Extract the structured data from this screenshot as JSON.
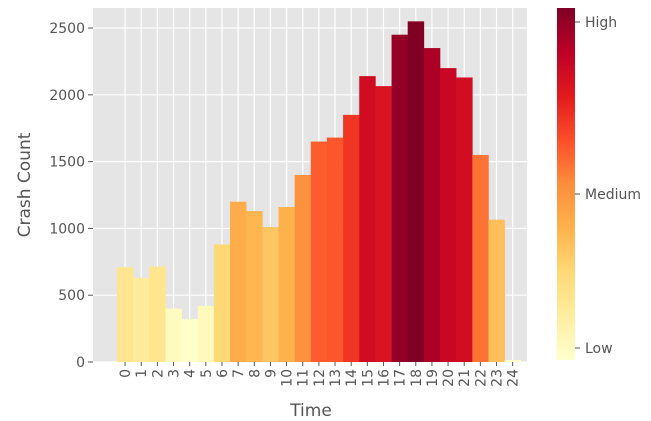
{
  "chart_data": {
    "type": "bar",
    "title": "",
    "xlabel": "Time",
    "ylabel": "Crash Count",
    "categories": [
      "0",
      "1",
      "2",
      "3",
      "4",
      "5",
      "6",
      "7",
      "8",
      "9",
      "10",
      "11",
      "12",
      "13",
      "14",
      "15",
      "16",
      "17",
      "18",
      "19",
      "20",
      "21",
      "22",
      "23",
      "24"
    ],
    "values": [
      710,
      630,
      715,
      400,
      320,
      420,
      880,
      1200,
      1130,
      1010,
      1160,
      1400,
      1650,
      1680,
      1850,
      2140,
      2065,
      2450,
      2550,
      2350,
      2200,
      2130,
      1550,
      1065,
      15
    ],
    "ylim": [
      0,
      2650
    ],
    "yticks": [
      0,
      500,
      1000,
      1500,
      2000,
      2500
    ],
    "grid": true,
    "background": "#e5e5e5",
    "colormap": "YlOrRd",
    "colormap_stops": [
      "#ffffcc",
      "#ffeda0",
      "#fed976",
      "#feb24c",
      "#fd8d3c",
      "#fc4e2a",
      "#e31a1c",
      "#bd0026",
      "#800026"
    ],
    "colorbar": {
      "labels": [
        "High",
        "Medium",
        "Low"
      ]
    }
  }
}
